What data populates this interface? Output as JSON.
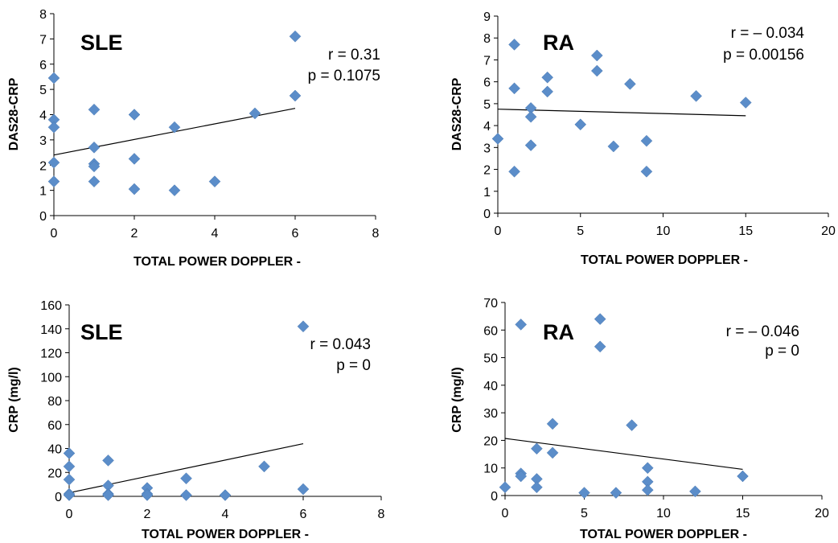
{
  "chart_data": [
    {
      "type": "scatter",
      "title": "SLE",
      "xlabel": "TOTAL POWER DOPPLER -",
      "ylabel": "DAS28-CRP",
      "xlim": [
        0,
        8
      ],
      "ylim": [
        0,
        8
      ],
      "xticks": [
        0,
        2,
        4,
        6,
        8
      ],
      "yticks": [
        0,
        1,
        2,
        3,
        4,
        5,
        6,
        7,
        8
      ],
      "points": [
        [
          0,
          5.45
        ],
        [
          0,
          3.8
        ],
        [
          0,
          3.5
        ],
        [
          0,
          2.1
        ],
        [
          0,
          1.35
        ],
        [
          1,
          4.2
        ],
        [
          1,
          2.7
        ],
        [
          1,
          2.05
        ],
        [
          1,
          1.95
        ],
        [
          1,
          1.35
        ],
        [
          2,
          4.0
        ],
        [
          2,
          2.25
        ],
        [
          2,
          1.05
        ],
        [
          3,
          3.5
        ],
        [
          3,
          1.0
        ],
        [
          4,
          1.35
        ],
        [
          5,
          4.05
        ],
        [
          6,
          7.1
        ],
        [
          6,
          4.75
        ]
      ],
      "trendline": [
        [
          0,
          2.4
        ],
        [
          6,
          4.25
        ]
      ],
      "stats": [
        "r = 0.31",
        "p = 0.1075"
      ]
    },
    {
      "type": "scatter",
      "title": "RA",
      "xlabel": "TOTAL POWER DOPPLER -",
      "ylabel": "DAS28-CRP",
      "xlim": [
        0,
        20
      ],
      "ylim": [
        0,
        9
      ],
      "xticks": [
        0,
        5,
        10,
        15,
        20
      ],
      "yticks": [
        0,
        1,
        2,
        3,
        4,
        5,
        6,
        7,
        8,
        9
      ],
      "points": [
        [
          0,
          3.4
        ],
        [
          1,
          7.7
        ],
        [
          1,
          5.7
        ],
        [
          1,
          1.9
        ],
        [
          2,
          4.8
        ],
        [
          2,
          4.4
        ],
        [
          2,
          3.1
        ],
        [
          3,
          6.2
        ],
        [
          3,
          5.55
        ],
        [
          5,
          4.05
        ],
        [
          6,
          7.2
        ],
        [
          6,
          6.5
        ],
        [
          7,
          3.05
        ],
        [
          8,
          5.9
        ],
        [
          9,
          3.3
        ],
        [
          9,
          1.9
        ],
        [
          12,
          5.35
        ],
        [
          15,
          5.05
        ]
      ],
      "trendline": [
        [
          0,
          4.75
        ],
        [
          15,
          4.45
        ]
      ],
      "stats": [
        "r = – 0.034",
        "p = 0.00156"
      ]
    },
    {
      "type": "scatter",
      "title": "SLE",
      "xlabel": "TOTAL POWER DOPPLER -",
      "ylabel": "CRP (mg/l)",
      "xlim": [
        0,
        8
      ],
      "ylim": [
        0,
        160
      ],
      "xticks": [
        0,
        2,
        4,
        6,
        8
      ],
      "yticks": [
        0,
        20,
        40,
        60,
        80,
        100,
        120,
        140,
        160
      ],
      "points": [
        [
          0,
          36
        ],
        [
          0,
          25
        ],
        [
          0,
          14
        ],
        [
          0,
          2
        ],
        [
          0,
          1
        ],
        [
          1,
          30
        ],
        [
          1,
          9
        ],
        [
          1,
          2
        ],
        [
          1,
          1
        ],
        [
          2,
          7
        ],
        [
          2,
          2
        ],
        [
          2,
          1
        ],
        [
          3,
          15
        ],
        [
          3,
          1
        ],
        [
          4,
          1
        ],
        [
          5,
          25
        ],
        [
          6,
          142
        ],
        [
          6,
          6
        ]
      ],
      "trendline": [
        [
          0,
          3
        ],
        [
          6,
          44
        ]
      ],
      "stats": [
        "r = 0.043",
        "p = 0"
      ]
    },
    {
      "type": "scatter",
      "title": "RA",
      "xlabel": "TOTAL POWER DOPPLER -",
      "ylabel": "CRP (mg/l)",
      "xlim": [
        0,
        20
      ],
      "ylim": [
        0,
        70
      ],
      "xticks": [
        0,
        5,
        10,
        15,
        20
      ],
      "yticks": [
        0,
        10,
        20,
        30,
        40,
        50,
        60,
        70
      ],
      "points": [
        [
          0,
          3
        ],
        [
          1,
          62
        ],
        [
          1,
          8
        ],
        [
          1,
          7
        ],
        [
          2,
          17
        ],
        [
          2,
          6
        ],
        [
          2,
          3
        ],
        [
          3,
          26
        ],
        [
          3,
          15.5
        ],
        [
          5,
          1
        ],
        [
          6,
          64
        ],
        [
          6,
          54
        ],
        [
          7,
          1
        ],
        [
          8,
          25.5
        ],
        [
          9,
          10
        ],
        [
          9,
          5
        ],
        [
          9,
          2
        ],
        [
          12,
          1.5
        ],
        [
          15,
          7
        ]
      ],
      "trendline": [
        [
          0,
          20.7
        ],
        [
          15,
          9.5
        ]
      ],
      "stats": [
        "r = – 0.046",
        "p =  0"
      ]
    }
  ]
}
